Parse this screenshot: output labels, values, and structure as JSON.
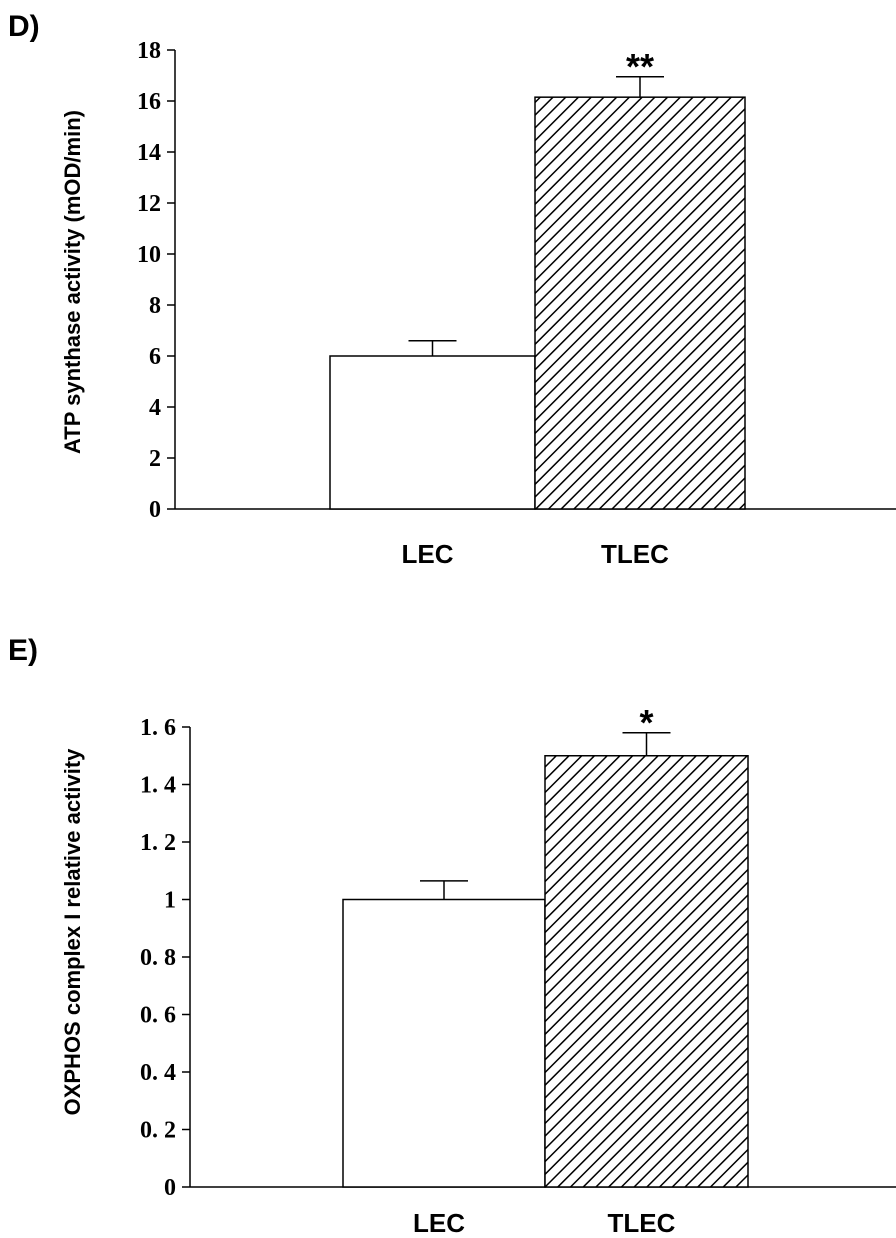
{
  "chart_data": [
    {
      "type": "bar",
      "panel": "D)",
      "categories": [
        "LEC",
        "TLEC"
      ],
      "values": [
        6.0,
        16.15
      ],
      "errors": [
        0.6,
        0.8
      ],
      "significance": [
        "",
        "**"
      ],
      "ylabel": "ATP synthase activity (mOD/min)",
      "xlabel": "",
      "ylim": [
        0,
        18
      ],
      "yticks": [
        0,
        2,
        4,
        6,
        8,
        10,
        12,
        14,
        16,
        18
      ],
      "ytick_labels": [
        "0",
        "2",
        "4",
        "6",
        "8",
        "10",
        "12",
        "14",
        "16",
        "18"
      ],
      "bar_fills": [
        "white",
        "hatched"
      ],
      "grid": false,
      "legend": "none"
    },
    {
      "type": "bar",
      "panel": "E)",
      "categories": [
        "LEC",
        "TLEC"
      ],
      "values": [
        1.0,
        1.5
      ],
      "errors": [
        0.065,
        0.08
      ],
      "significance": [
        "",
        "*"
      ],
      "ylabel": "OXPHOS complex I relative activity",
      "xlabel": "",
      "ylim": [
        0,
        1.6
      ],
      "yticks": [
        0,
        0.2,
        0.4,
        0.6,
        0.8,
        1.0,
        1.2,
        1.4,
        1.6
      ],
      "ytick_labels": [
        "0",
        "0. 2",
        "0. 4",
        "0. 6",
        "0. 8",
        "1",
        "1. 2",
        "1. 4",
        "1. 6"
      ],
      "bar_fills": [
        "white",
        "hatched"
      ],
      "grid": false,
      "legend": "none"
    }
  ]
}
